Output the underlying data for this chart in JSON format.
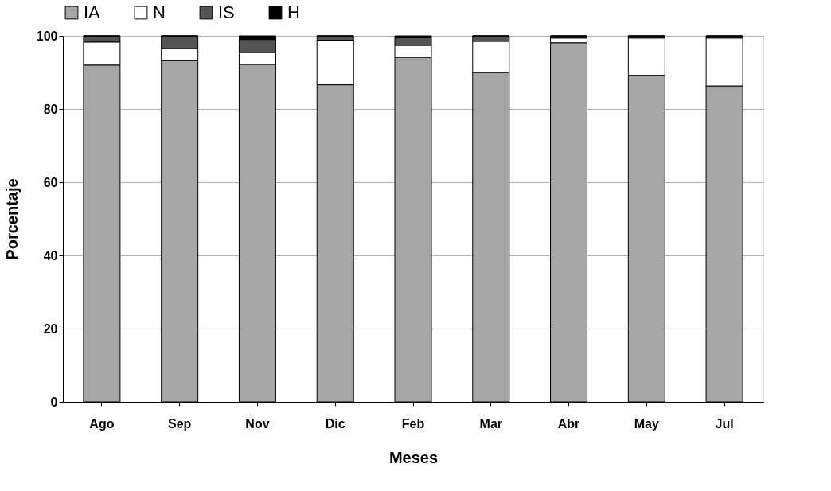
{
  "chart_data": {
    "type": "bar",
    "stacked": true,
    "xlabel": "Meses",
    "ylabel": "Porcentaje",
    "categories": [
      "Ago",
      "Sep",
      "Nov",
      "Dic",
      "Feb",
      "Mar",
      "Abr",
      "May",
      "Jul"
    ],
    "series": [
      {
        "name": "IA",
        "color": "#a6a6a6",
        "values": [
          92.0,
          93.2,
          92.2,
          86.6,
          94.1,
          90.0,
          98.1,
          89.2,
          86.3
        ]
      },
      {
        "name": "N",
        "color": "#ffffff",
        "values": [
          6.3,
          3.3,
          3.2,
          12.2,
          3.3,
          8.5,
          1.3,
          10.2,
          13.1
        ]
      },
      {
        "name": "IS",
        "color": "#555555",
        "values": [
          1.7,
          3.5,
          3.6,
          1.2,
          2.1,
          1.5,
          0.6,
          0.6,
          0.6
        ]
      },
      {
        "name": "H",
        "color": "#000000",
        "values": [
          0,
          0,
          1.0,
          0,
          0.5,
          0,
          0,
          0,
          0
        ]
      }
    ],
    "ylim": [
      0,
      100
    ],
    "yticks": [
      0,
      20,
      40,
      60,
      80,
      100
    ],
    "grid": "y",
    "legend": "top"
  }
}
